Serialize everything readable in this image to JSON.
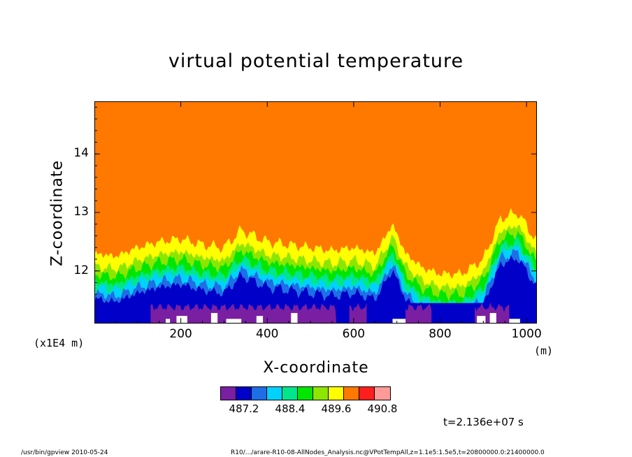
{
  "chart_data": {
    "type": "heatmap",
    "title": "virtual potential temperature",
    "xlabel": "X-coordinate",
    "ylabel": "Z-coordinate",
    "x_unit": "(m)",
    "y_unit": "(x1E4 m)",
    "xlim": [
      0,
      1024
    ],
    "ylim": [
      11.1,
      14.9
    ],
    "x_ticks": [
      "200",
      "400",
      "600",
      "800",
      "1000"
    ],
    "y_ticks": [
      "12",
      "13",
      "14"
    ],
    "colorbar": {
      "colors": [
        "#7a1fa2",
        "#0000c8",
        "#1e6ee6",
        "#00d2ff",
        "#00e68c",
        "#00e600",
        "#8ce600",
        "#ffff00",
        "#ff7800",
        "#ff1e1e",
        "#ff9a96"
      ],
      "tick_labels": [
        "487.2",
        "488.4",
        "489.6",
        "490.8"
      ]
    },
    "boundary_layer_top": {
      "x": [
        0,
        50,
        100,
        150,
        200,
        250,
        300,
        340,
        400,
        450,
        500,
        550,
        600,
        650,
        690,
        720,
        760,
        800,
        850,
        900,
        940,
        980,
        1024
      ],
      "z": [
        12.3,
        12.25,
        12.4,
        12.5,
        12.55,
        12.45,
        12.4,
        12.7,
        12.5,
        12.45,
        12.4,
        12.35,
        12.4,
        12.3,
        12.8,
        12.3,
        12.05,
        11.95,
        11.95,
        12.2,
        12.9,
        13.0,
        12.5
      ]
    }
  },
  "annotation": {
    "time": "t=2.136e+07 s"
  },
  "footer": {
    "left": "/usr/bin/gpview   2010-05-24",
    "right": "R10/.../arare-R10-08-AllNodes_Analysis.nc@VPotTempAll,z=1.1e5:1.5e5,t=20800000.0:21400000.0"
  }
}
